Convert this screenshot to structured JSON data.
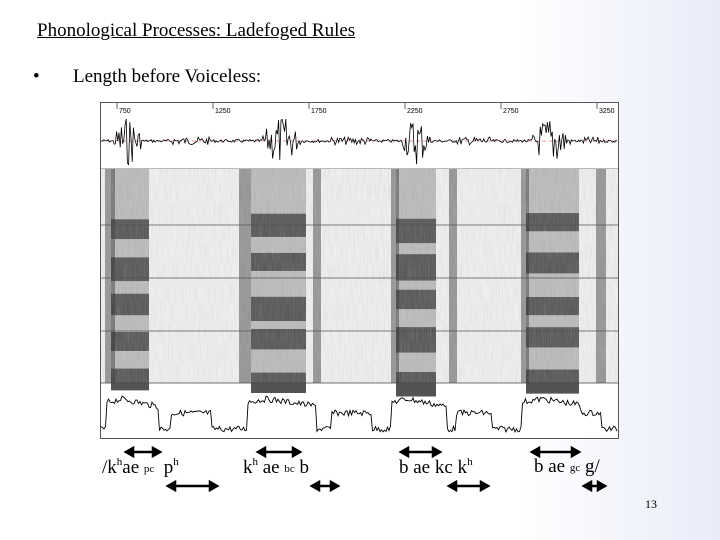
{
  "slide": {
    "title": "Phonological Processes: Ladefoged Rules",
    "bullet_symbol": "•",
    "bullet_text": "Length before Voiceless:",
    "page_number": "13"
  },
  "figure": {
    "time_ticks": [
      "750",
      "1250",
      "1750",
      "2250",
      "2750",
      "3250"
    ]
  },
  "transcriptions": {
    "word1": {
      "open": "/k",
      "sup1": "h",
      "mid": "ae ",
      "small": "pc",
      "gap": "  p",
      "sup2": "h"
    },
    "word2": {
      "pre": "k",
      "sup1": "h",
      "mid": " ae ",
      "small": "bc",
      "post": " b"
    },
    "word3": {
      "pre": "b ae kc k",
      "sup1": "h"
    },
    "word4": {
      "pre": "b ae ",
      "small": "gc",
      "post": " g/"
    }
  }
}
